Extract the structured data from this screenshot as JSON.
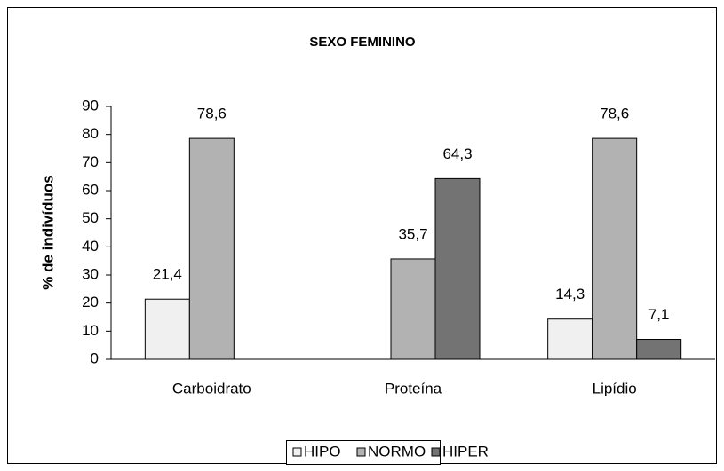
{
  "chart_data": {
    "type": "bar",
    "title": "SEXO FEMININO",
    "y_label": "% de indivíduos",
    "categories": [
      "Carboidrato",
      "Proteína",
      "Lipídio"
    ],
    "series": [
      {
        "name": "HIPO",
        "color": "#f0f0f0",
        "values": [
          21.4,
          null,
          14.3
        ],
        "value_labels": [
          "21,4",
          null,
          "14,3"
        ]
      },
      {
        "name": "NORMO",
        "color": "#b2b2b2",
        "values": [
          78.6,
          35.7,
          78.6
        ],
        "value_labels": [
          "78,6",
          "35,7",
          "78,6"
        ]
      },
      {
        "name": "HIPER",
        "color": "#737373",
        "values": [
          null,
          64.3,
          7.1
        ],
        "value_labels": [
          null,
          "64,3",
          "7,1"
        ]
      }
    ],
    "ylim": [
      0,
      90
    ],
    "yticks": [
      0,
      10,
      20,
      30,
      40,
      50,
      60,
      70,
      80,
      90
    ],
    "legend": "bottom"
  }
}
